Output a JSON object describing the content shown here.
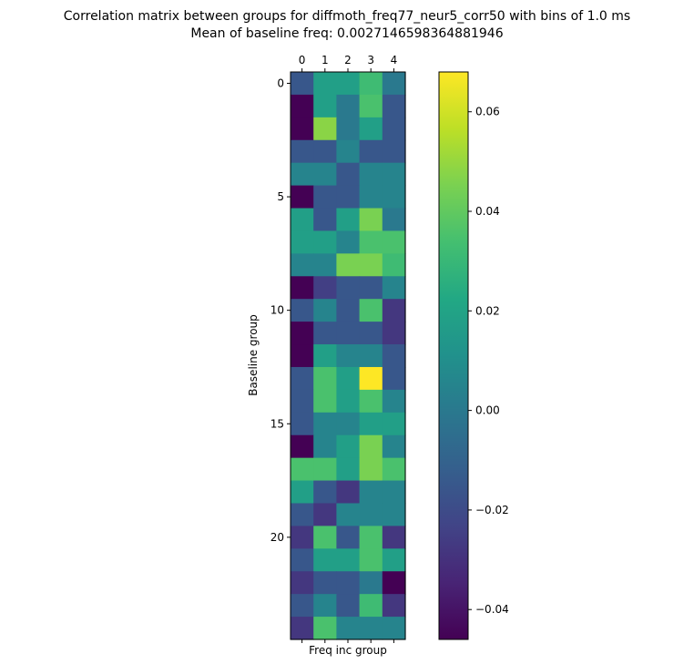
{
  "title_line1": "Correlation matrix between groups for diffmoth_freq77_neur5_corr50 with bins of 1.0 ms",
  "title_line2": "Mean of baseline freq: 0.0027146598364881946",
  "chart_data": {
    "type": "heatmap",
    "xlabel": "Freq inc group",
    "ylabel": "Baseline group",
    "x_categories": [
      "0",
      "1",
      "2",
      "3",
      "4"
    ],
    "x_ticks": [
      "0",
      "1",
      "2",
      "3",
      "4"
    ],
    "y_ticks": [
      "0",
      "5",
      "10",
      "15",
      "20"
    ],
    "y_tick_values": [
      0,
      5,
      10,
      15,
      20
    ],
    "n_rows": 25,
    "n_cols": 5,
    "colormap": "viridis",
    "vmin": -0.046,
    "vmax": 0.068,
    "colorbar_ticks": [
      {
        "value": 0.06,
        "label": "0.06"
      },
      {
        "value": 0.04,
        "label": "0.04"
      },
      {
        "value": 0.02,
        "label": "0.02"
      },
      {
        "value": 0.0,
        "label": "0.00"
      },
      {
        "value": -0.02,
        "label": "−0.02"
      },
      {
        "value": -0.04,
        "label": "−0.04"
      }
    ],
    "values": [
      [
        -0.015,
        0.018,
        0.018,
        0.032,
        0.0
      ],
      [
        -0.046,
        0.018,
        0.0,
        0.035,
        -0.015
      ],
      [
        -0.046,
        0.048,
        0.0,
        0.018,
        -0.015
      ],
      [
        -0.015,
        -0.015,
        0.005,
        -0.015,
        -0.015
      ],
      [
        0.005,
        0.005,
        -0.015,
        0.005,
        0.005
      ],
      [
        -0.046,
        -0.015,
        -0.015,
        0.005,
        0.005
      ],
      [
        0.018,
        -0.015,
        0.018,
        0.045,
        0.0
      ],
      [
        0.018,
        0.018,
        0.005,
        0.035,
        0.035
      ],
      [
        0.005,
        0.005,
        0.045,
        0.045,
        0.032
      ],
      [
        -0.046,
        -0.025,
        -0.015,
        -0.015,
        0.005
      ],
      [
        -0.015,
        0.005,
        -0.015,
        0.035,
        -0.028
      ],
      [
        -0.046,
        -0.015,
        -0.015,
        -0.015,
        -0.028
      ],
      [
        -0.046,
        0.018,
        0.005,
        0.005,
        -0.015
      ],
      [
        -0.015,
        0.035,
        0.018,
        0.068,
        -0.015
      ],
      [
        -0.015,
        0.035,
        0.018,
        0.035,
        0.005
      ],
      [
        -0.015,
        0.005,
        0.005,
        0.018,
        0.018
      ],
      [
        -0.046,
        0.005,
        0.018,
        0.045,
        0.005
      ],
      [
        0.035,
        0.035,
        0.018,
        0.045,
        0.035
      ],
      [
        0.018,
        -0.015,
        -0.028,
        0.005,
        0.005
      ],
      [
        -0.015,
        -0.028,
        0.005,
        0.005,
        0.005
      ],
      [
        -0.028,
        0.035,
        -0.015,
        0.035,
        -0.028
      ],
      [
        -0.015,
        0.018,
        0.018,
        0.035,
        0.018
      ],
      [
        -0.028,
        -0.015,
        -0.015,
        0.0,
        -0.046
      ],
      [
        -0.015,
        0.005,
        -0.015,
        0.032,
        -0.028
      ],
      [
        -0.028,
        0.035,
        0.005,
        0.005,
        0.005
      ]
    ]
  }
}
